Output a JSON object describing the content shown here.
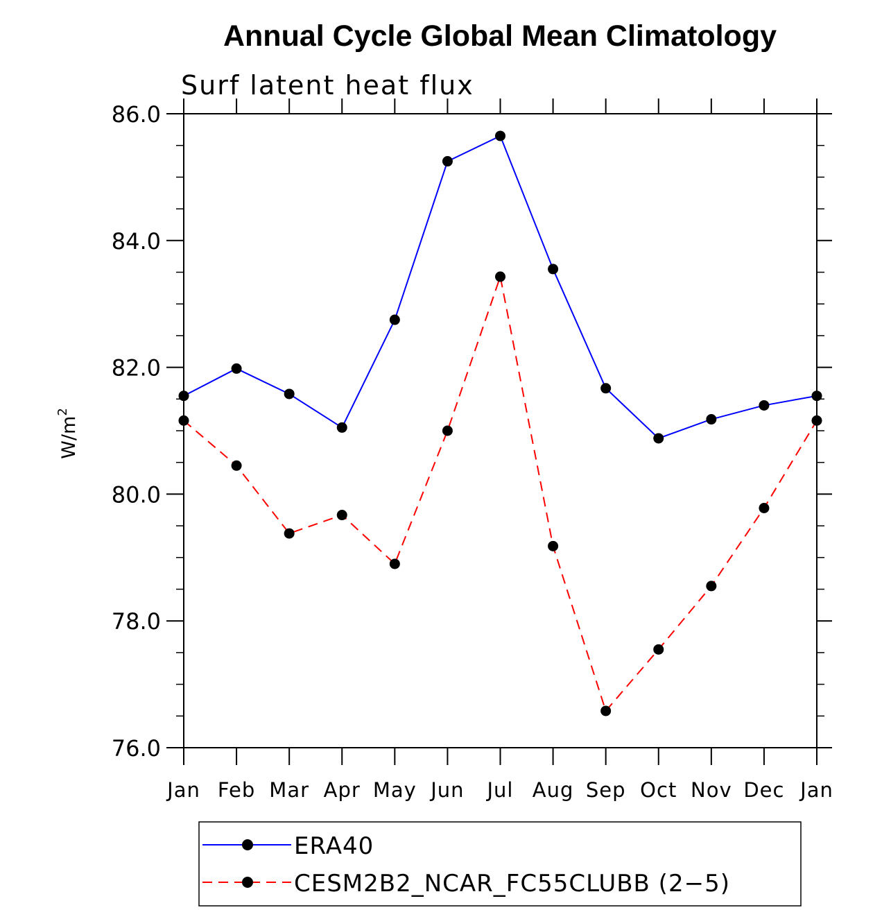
{
  "chart_data": {
    "type": "line",
    "title": "Annual Cycle Global Mean Climatology",
    "subtitle": "Surf latent heat flux",
    "xlabel": "",
    "ylabel_base": "W/m",
    "ylabel_sup": "2",
    "ylim": [
      76.0,
      86.0
    ],
    "yticks": [
      76.0,
      78.0,
      80.0,
      82.0,
      84.0,
      86.0
    ],
    "ytick_labels": [
      "76.0",
      "78.0",
      "80.0",
      "82.0",
      "84.0",
      "86.0"
    ],
    "categories": [
      "Jan",
      "Feb",
      "Mar",
      "Apr",
      "May",
      "Jun",
      "Jul",
      "Aug",
      "Sep",
      "Oct",
      "Nov",
      "Dec",
      "Jan"
    ],
    "series": [
      {
        "name": "ERA40",
        "color": "#0000ff",
        "dash": "solid",
        "values": [
          81.55,
          81.98,
          81.58,
          81.05,
          82.75,
          85.25,
          85.65,
          83.55,
          81.67,
          80.88,
          81.18,
          81.4,
          81.55
        ]
      },
      {
        "name": "CESM2B2_NCAR_FC55CLUBB (2−5)",
        "color": "#ff0000",
        "dash": "dashed",
        "values": [
          81.16,
          80.45,
          79.38,
          79.67,
          78.9,
          81.0,
          83.43,
          79.18,
          76.58,
          77.55,
          78.55,
          79.78,
          81.16
        ]
      }
    ],
    "marker_color": "#000000",
    "legend_position": "bottom-center"
  }
}
